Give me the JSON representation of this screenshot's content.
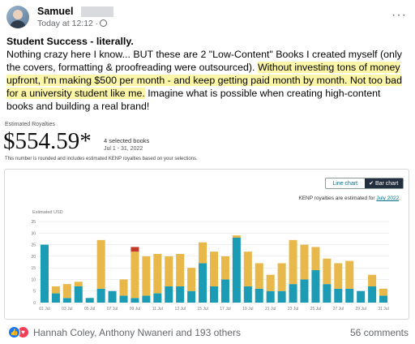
{
  "post": {
    "author": "Samuel",
    "time": "Today at 12:12 ·",
    "more_glyph": "···",
    "title": "Student Success - literally.",
    "body_plain_1": "Nothing crazy here I know... BUT these are 2 \"Low-Content\" Books I created myself (only the covers, formatting & proofreading were outsourced). ",
    "body_highlight": "Without investing tons of money upfront, I'm making $500 per month - and keep getting paid month by month. Not too bad for a university student like me.",
    "body_plain_2": " Imagine what is possible when creating high-content books and building a real brand!"
  },
  "royalty": {
    "label": "Estimated Royalties",
    "amount": "$554.59*",
    "books": "4 selected books",
    "date_range": "Jul 1 - 31, 2022",
    "note": "This number is rounded and includes estimated KENP royalties based on your selections.",
    "toggle_line": "Line chart",
    "toggle_bar": "Bar chart",
    "kenp_prefix": "KENP royalties are estimated for ",
    "kenp_month": "July 2022",
    "kenp_suffix": "."
  },
  "chart_data": {
    "type": "bar",
    "ylabel": "Estimated USD",
    "ylim": [
      0,
      35
    ],
    "yticks": [
      0,
      5,
      10,
      15,
      20,
      25,
      30,
      35
    ],
    "x_tick_labels": [
      "01 Jul",
      "03 Jul",
      "05 Jul",
      "07 Jul",
      "09 Jul",
      "11 Jul",
      "13 Jul",
      "15 Jul",
      "17 Jul",
      "19 Jul",
      "21 Jul",
      "23 Jul",
      "25 Jul",
      "27 Jul",
      "29 Jul",
      "31 Jul"
    ],
    "categories": [
      "01 Jul",
      "02 Jul",
      "03 Jul",
      "04 Jul",
      "05 Jul",
      "06 Jul",
      "07 Jul",
      "08 Jul",
      "09 Jul",
      "10 Jul",
      "11 Jul",
      "12 Jul",
      "13 Jul",
      "14 Jul",
      "15 Jul",
      "16 Jul",
      "17 Jul",
      "18 Jul",
      "19 Jul",
      "20 Jul",
      "21 Jul",
      "22 Jul",
      "23 Jul",
      "24 Jul",
      "25 Jul",
      "26 Jul",
      "27 Jul",
      "28 Jul",
      "29 Jul",
      "30 Jul",
      "31 Jul"
    ],
    "colors": [
      "#1c9bb5",
      "#e8b94a",
      "#c0392b"
    ],
    "series": [
      {
        "values": [
          25,
          4,
          2,
          7,
          2,
          6,
          5,
          3,
          2,
          3,
          4,
          7,
          7,
          5,
          17,
          7,
          10,
          28,
          7,
          6,
          5,
          5,
          8,
          10,
          14,
          8,
          6,
          6,
          5,
          7,
          3
        ]
      },
      {
        "values": [
          0,
          3,
          6,
          2,
          0,
          21,
          0,
          7,
          20,
          17,
          17,
          13,
          14,
          10,
          9,
          15,
          10,
          1,
          15,
          11,
          7,
          12,
          19,
          15,
          10,
          11,
          11,
          12,
          0,
          5,
          3
        ]
      },
      {
        "values": [
          0,
          0,
          0,
          0,
          0,
          0,
          0,
          0,
          2,
          0,
          0,
          0,
          0,
          0,
          0,
          0,
          0,
          0,
          0,
          0,
          0,
          0,
          0,
          0,
          0,
          0,
          0,
          0,
          0,
          0,
          0
        ]
      }
    ]
  },
  "footer": {
    "reactors": "Hannah Coley, Anthony Nwaneri and 193 others",
    "comments": "56 comments",
    "like_glyph": "👍",
    "love_glyph": "♥"
  },
  "icons": [
    "avatar",
    "globe-icon",
    "more-icon",
    "like-icon",
    "love-icon"
  ]
}
